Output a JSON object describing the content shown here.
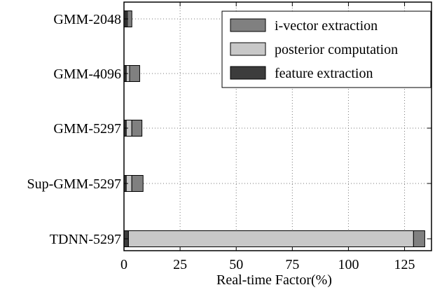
{
  "chart_data": {
    "type": "bar",
    "orientation": "horizontal",
    "stacked": true,
    "title": "",
    "xlabel": "Real-time Factor(%)",
    "ylabel": "",
    "xlim": [
      0,
      137
    ],
    "xticks": [
      0,
      25,
      50,
      75,
      100,
      125
    ],
    "grid": true,
    "grid_style": "dotted",
    "legend_position": "top-right",
    "categories": [
      "GMM-2048",
      "GMM-4096",
      "GMM-5297",
      "Sup-GMM-5297",
      "TDNN-5297"
    ],
    "series": [
      {
        "name": "feature extraction",
        "color": "#3c3c3c",
        "values": [
          1.0,
          1.0,
          1.0,
          1.0,
          2.0
        ]
      },
      {
        "name": "posterior computation",
        "color": "#c8c8c8",
        "values": [
          0.5,
          1.5,
          2.5,
          2.5,
          127.0
        ]
      },
      {
        "name": "i-vector extraction",
        "color": "#808080",
        "values": [
          2.0,
          4.5,
          4.5,
          5.0,
          5.0
        ]
      }
    ],
    "legend_order": [
      "i-vector extraction",
      "posterior computation",
      "feature extraction"
    ]
  }
}
